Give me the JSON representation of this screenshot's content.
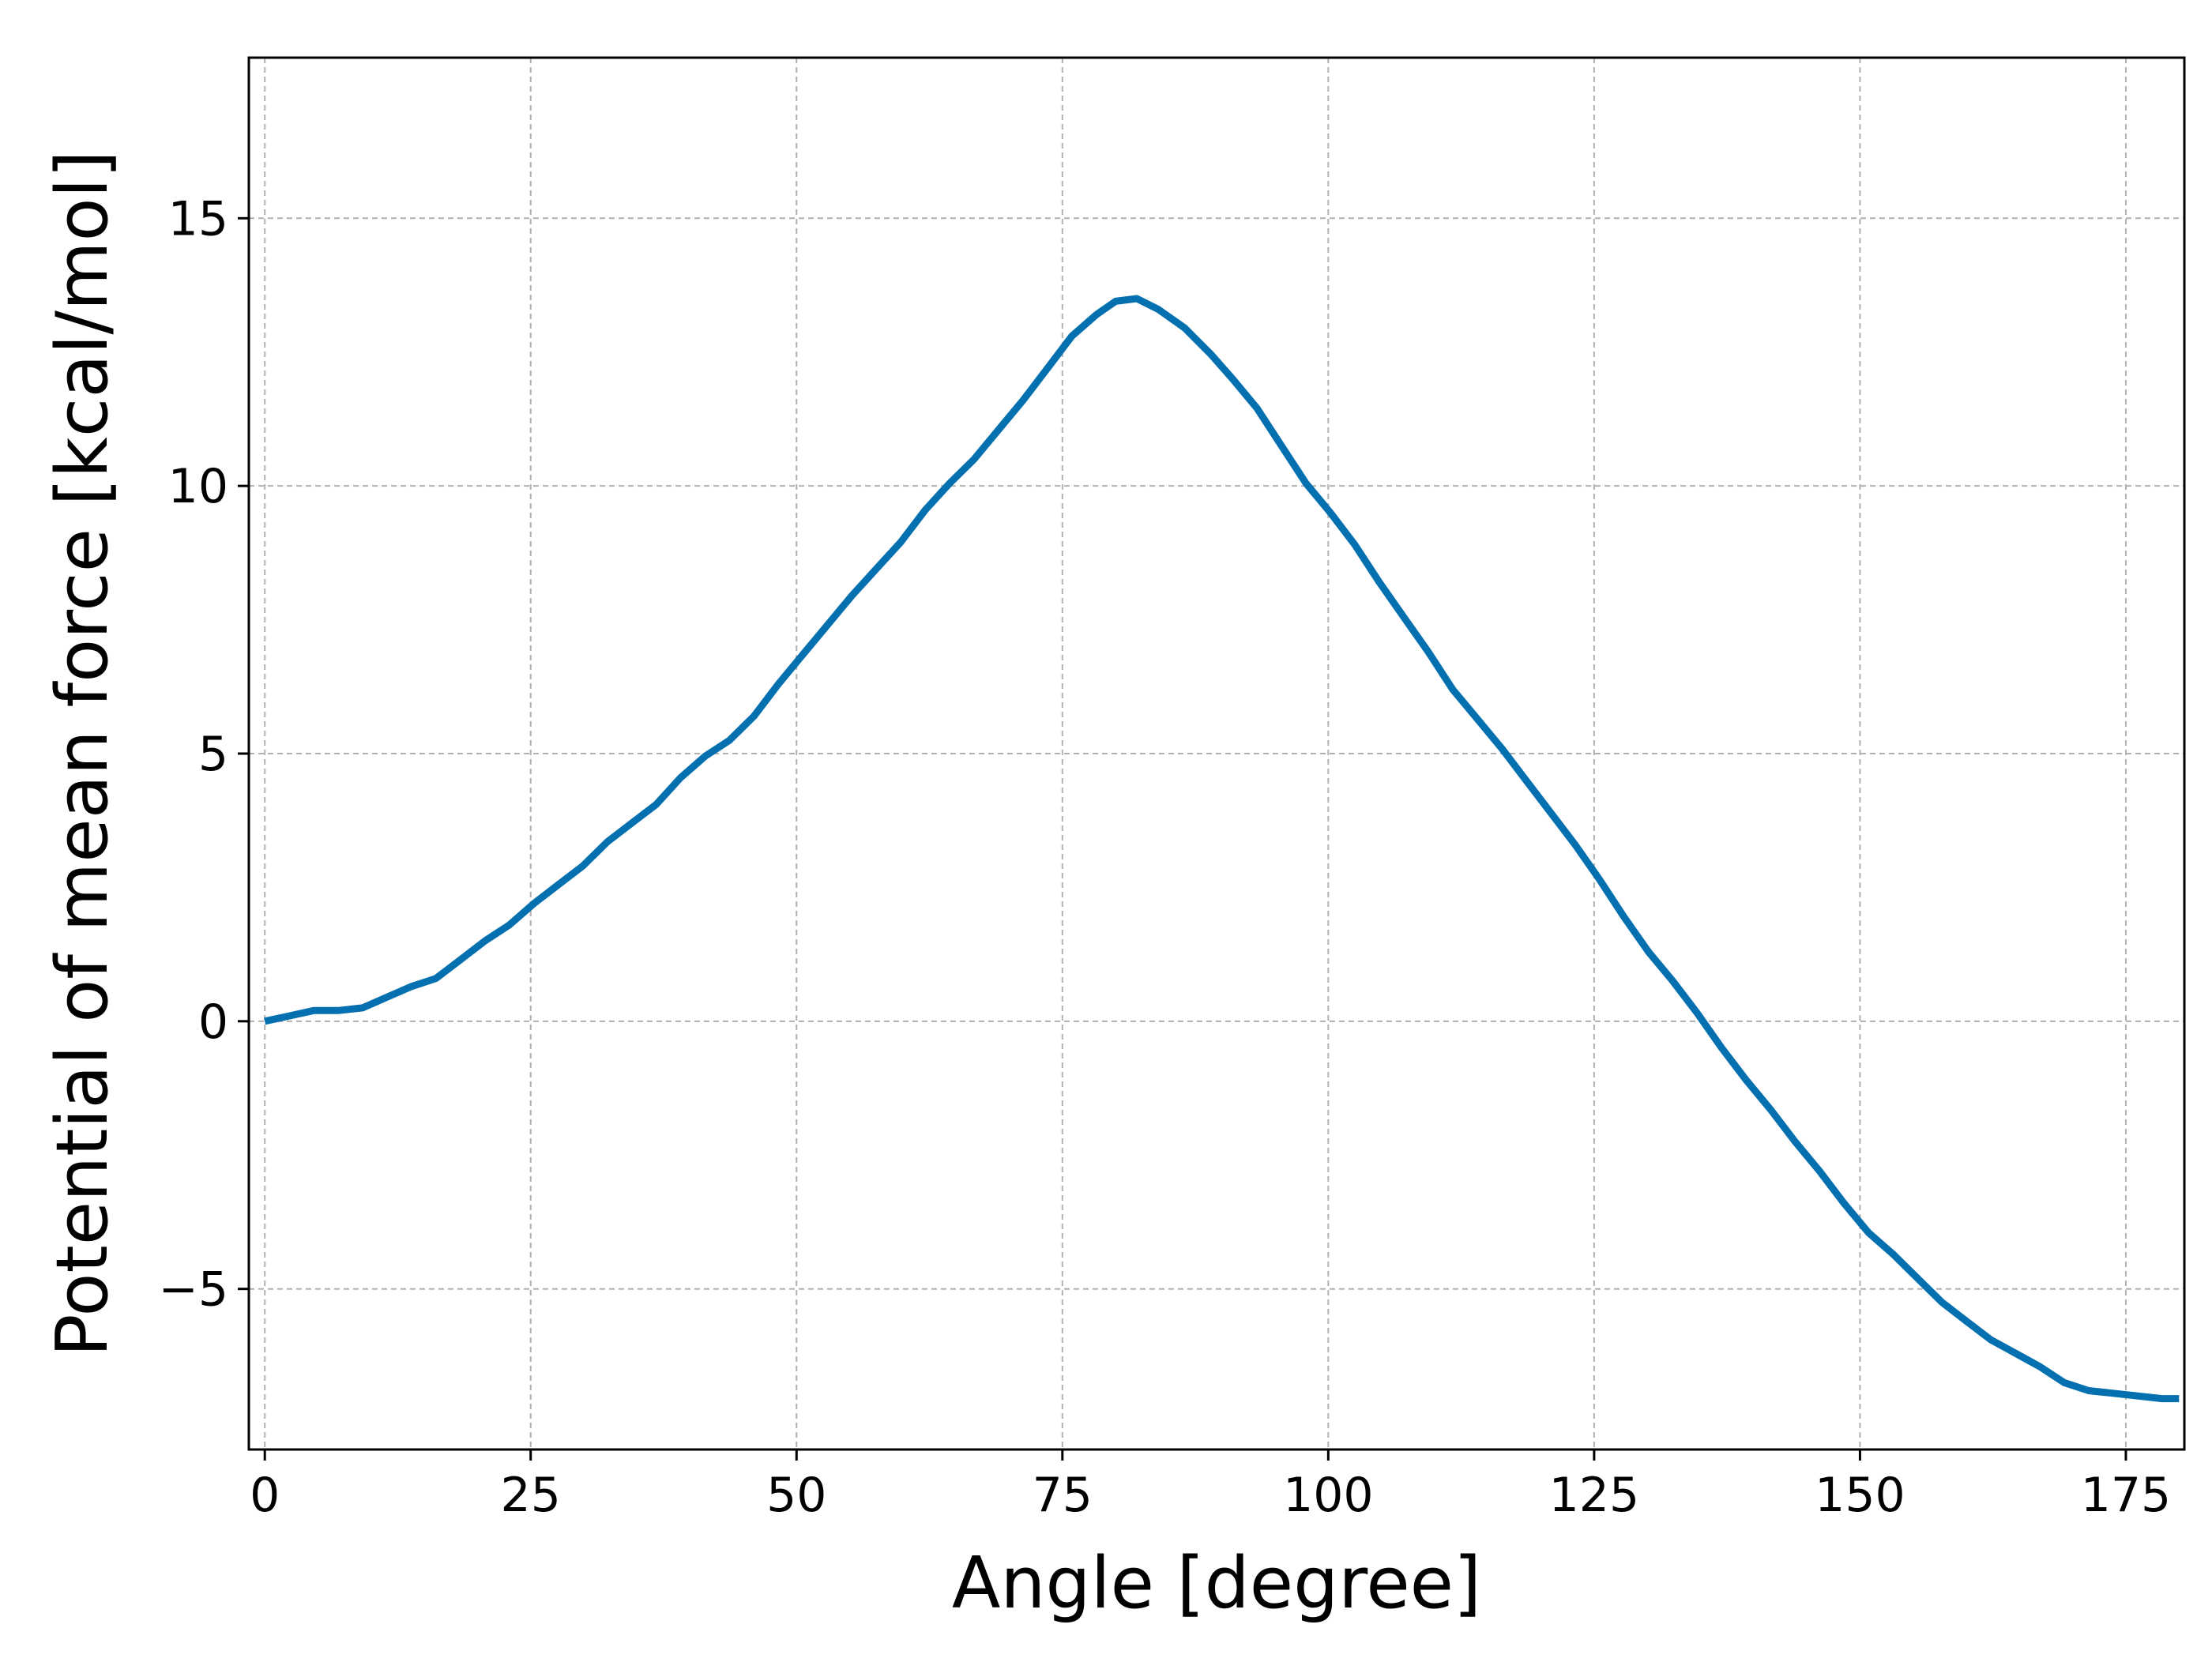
{
  "chart_data": {
    "type": "line",
    "title": "",
    "xlabel": "Angle [degree]",
    "ylabel": "Potential of mean force [kcal/mol]",
    "xlim": [
      -1.5,
      180.5
    ],
    "ylim": [
      -8,
      18
    ],
    "xticks": [
      0,
      25,
      50,
      75,
      100,
      125,
      150,
      175
    ],
    "yticks": [
      -5,
      0,
      5,
      10,
      15
    ],
    "ytick_labels": [
      "−5",
      "0",
      "5",
      "10",
      "15"
    ],
    "grid": true,
    "legend": false,
    "series": [
      {
        "color": "#0570b0",
        "x": [
          0,
          2.3,
          4.6,
          6.9,
          9.2,
          11.5,
          13.8,
          16.1,
          18.4,
          20.7,
          23.0,
          25.3,
          27.6,
          29.9,
          32.2,
          34.5,
          36.8,
          39.1,
          41.4,
          43.7,
          46.0,
          48.3,
          50.6,
          52.9,
          55.2,
          57.5,
          59.8,
          62.1,
          64.4,
          66.7,
          69.0,
          71.3,
          73.6,
          75.9,
          78.2,
          80.0,
          82.0,
          84.0,
          86.5,
          89.0,
          91.0,
          93.3,
          95.6,
          97.9,
          100.2,
          102.5,
          104.8,
          107.1,
          109.4,
          111.7,
          114.0,
          116.3,
          118.6,
          120.9,
          123.2,
          125.5,
          127.8,
          130.1,
          132.4,
          134.7,
          137.0,
          139.3,
          141.6,
          143.9,
          146.2,
          148.5,
          150.8,
          153.1,
          155.4,
          157.7,
          160.0,
          162.3,
          164.6,
          166.9,
          169.2,
          171.5,
          173.8,
          176.1,
          178.4,
          180.0
        ],
        "y": [
          0.0,
          0.1,
          0.2,
          0.2,
          0.25,
          0.45,
          0.65,
          0.8,
          1.15,
          1.5,
          1.8,
          2.2,
          2.55,
          2.9,
          3.35,
          3.7,
          4.05,
          4.55,
          4.95,
          5.25,
          5.7,
          6.3,
          6.85,
          7.4,
          7.95,
          8.45,
          8.95,
          9.55,
          10.05,
          10.5,
          11.05,
          11.6,
          12.2,
          12.8,
          13.2,
          13.45,
          13.5,
          13.3,
          12.95,
          12.45,
          12.0,
          11.45,
          10.75,
          10.05,
          9.5,
          8.9,
          8.2,
          7.55,
          6.9,
          6.2,
          5.65,
          5.1,
          4.5,
          3.9,
          3.3,
          2.65,
          1.95,
          1.3,
          0.75,
          0.15,
          -0.5,
          -1.1,
          -1.65,
          -2.25,
          -2.8,
          -3.4,
          -3.95,
          -4.35,
          -4.8,
          -5.25,
          -5.6,
          -5.95,
          -6.2,
          -6.45,
          -6.75,
          -6.9,
          -6.95,
          -7.0,
          -7.05,
          -7.05
        ]
      }
    ]
  }
}
